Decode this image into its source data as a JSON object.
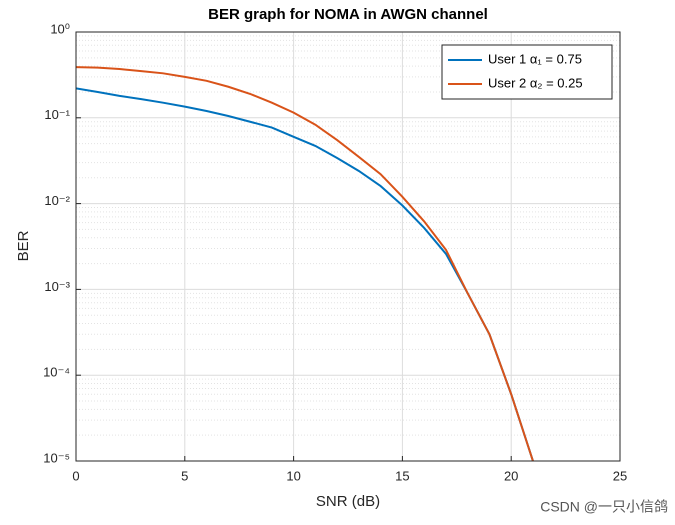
{
  "chart_data": {
    "type": "line",
    "title": "BER graph for NOMA in AWGN channel",
    "x_label": "SNR (dB)",
    "y_label": "BER",
    "x": [
      0,
      1,
      2,
      3,
      4,
      5,
      6,
      7,
      8,
      9,
      10,
      11,
      12,
      13,
      14,
      15,
      16,
      17,
      18,
      19,
      20,
      21
    ],
    "series": [
      {
        "name": "User 1 α₁ = 0.75",
        "color": "#0072BD",
        "values": [
          0.22,
          0.2,
          0.18,
          0.165,
          0.15,
          0.135,
          0.12,
          0.105,
          0.09,
          0.077,
          0.06,
          0.047,
          0.034,
          0.024,
          0.016,
          0.0095,
          0.0052,
          0.0026,
          0.0009,
          0.0003,
          6e-05,
          1e-05
        ]
      },
      {
        "name": "User 2 α₂ = 0.25",
        "color": "#D95319",
        "values": [
          0.39,
          0.385,
          0.37,
          0.35,
          0.33,
          0.3,
          0.27,
          0.23,
          0.19,
          0.15,
          0.115,
          0.083,
          0.055,
          0.035,
          0.022,
          0.012,
          0.0062,
          0.0029,
          0.0009,
          0.0003,
          6e-05,
          1e-05
        ]
      }
    ],
    "xlim": [
      0,
      25
    ],
    "xticks": [
      0,
      5,
      10,
      15,
      20,
      25
    ],
    "ylim": [
      1e-05,
      1
    ],
    "y_scale": "log",
    "yticks": [
      {
        "value": 1e-05,
        "label": "10⁻⁵"
      },
      {
        "value": 0.0001,
        "label": "10⁻⁴"
      },
      {
        "value": 0.001,
        "label": "10⁻³"
      },
      {
        "value": 0.01,
        "label": "10⁻²"
      },
      {
        "value": 0.1,
        "label": "10⁻¹"
      },
      {
        "value": 1,
        "label": "10⁰"
      }
    ],
    "grid": true,
    "minor_grid": true,
    "legend": "upper right",
    "watermark": "CSDN @一只小信鸽"
  }
}
